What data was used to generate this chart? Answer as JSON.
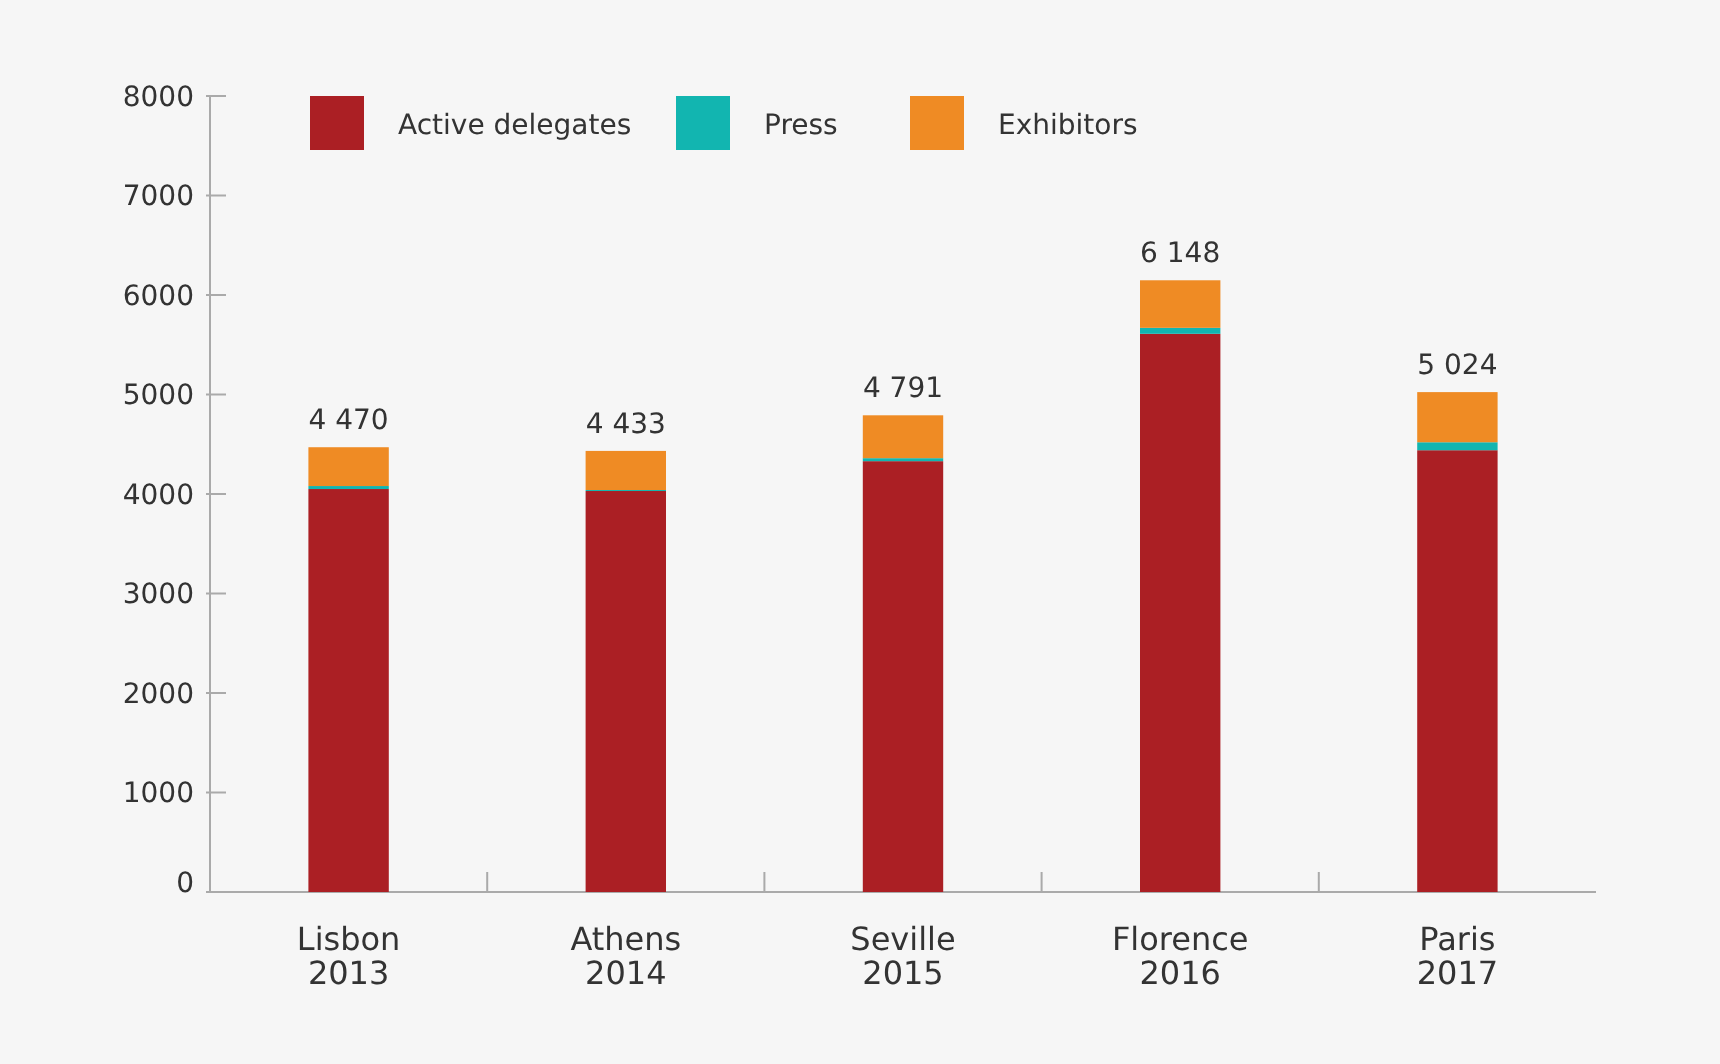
{
  "chart_data": {
    "type": "bar",
    "stacked": true,
    "categories": [
      "Lisbon\n2013",
      "Athens\n2014",
      "Seville\n2015",
      "Florence\n2016",
      "Paris\n2017"
    ],
    "series": [
      {
        "name": "Active delegates",
        "color": "#ab1f24",
        "values": [
          4050,
          4030,
          4330,
          5610,
          4440
        ]
      },
      {
        "name": "Press",
        "color": "#12b5b0",
        "values": [
          30,
          10,
          30,
          60,
          80
        ]
      },
      {
        "name": "Exhibitors",
        "color": "#ef8b24",
        "values": [
          390,
          393,
          431,
          478,
          504
        ]
      }
    ],
    "totals": [
      "4 470",
      "4 433",
      "4 791",
      "6 148",
      "5 024"
    ],
    "ylim": [
      0,
      8000
    ],
    "yticks": [
      0,
      1000,
      2000,
      3000,
      4000,
      5000,
      6000,
      7000,
      8000
    ],
    "grid": false,
    "legend": "top left"
  }
}
